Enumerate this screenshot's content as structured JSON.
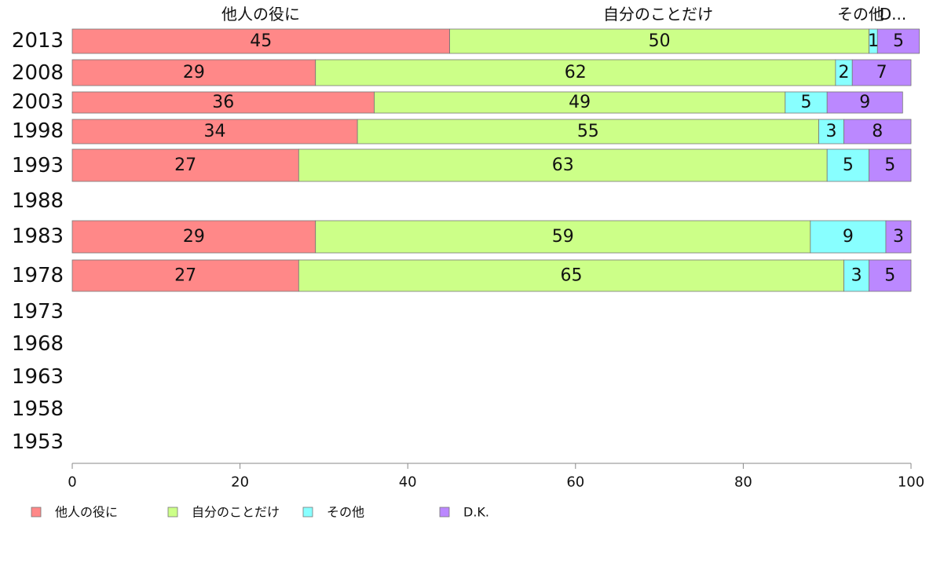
{
  "chart_data": {
    "type": "bar",
    "orientation": "horizontal",
    "stacked": true,
    "title": "",
    "xlabel": "",
    "ylabel": "",
    "xlim": [
      0,
      100
    ],
    "xticks": [
      "0",
      "20",
      "40",
      "60",
      "80",
      "100"
    ],
    "categories": [
      "2013",
      "2008",
      "2003",
      "1998",
      "1993",
      "1988",
      "1983",
      "1978",
      "1973",
      "1968",
      "1963",
      "1958",
      "1953"
    ],
    "top_labels": [
      "他人の役に",
      "自分のことだけ",
      "その他",
      "D..."
    ],
    "series": [
      {
        "name": "他人の役に",
        "color": "#ff8888",
        "values": [
          45,
          29,
          36,
          34,
          27,
          null,
          29,
          27,
          null,
          null,
          null,
          null,
          null
        ]
      },
      {
        "name": "自分のことだけ",
        "color": "#ccff88",
        "values": [
          50,
          62,
          49,
          55,
          63,
          null,
          59,
          65,
          null,
          null,
          null,
          null,
          null
        ]
      },
      {
        "name": "その他",
        "color": "#88ffff",
        "values": [
          1,
          2,
          5,
          3,
          5,
          null,
          9,
          3,
          null,
          null,
          null,
          null,
          null
        ]
      },
      {
        "name": "D.K.",
        "color": "#bb88ff",
        "values": [
          5,
          7,
          9,
          8,
          5,
          null,
          3,
          5,
          null,
          null,
          null,
          null,
          null
        ]
      }
    ],
    "legend": "bottom",
    "grid": false
  }
}
